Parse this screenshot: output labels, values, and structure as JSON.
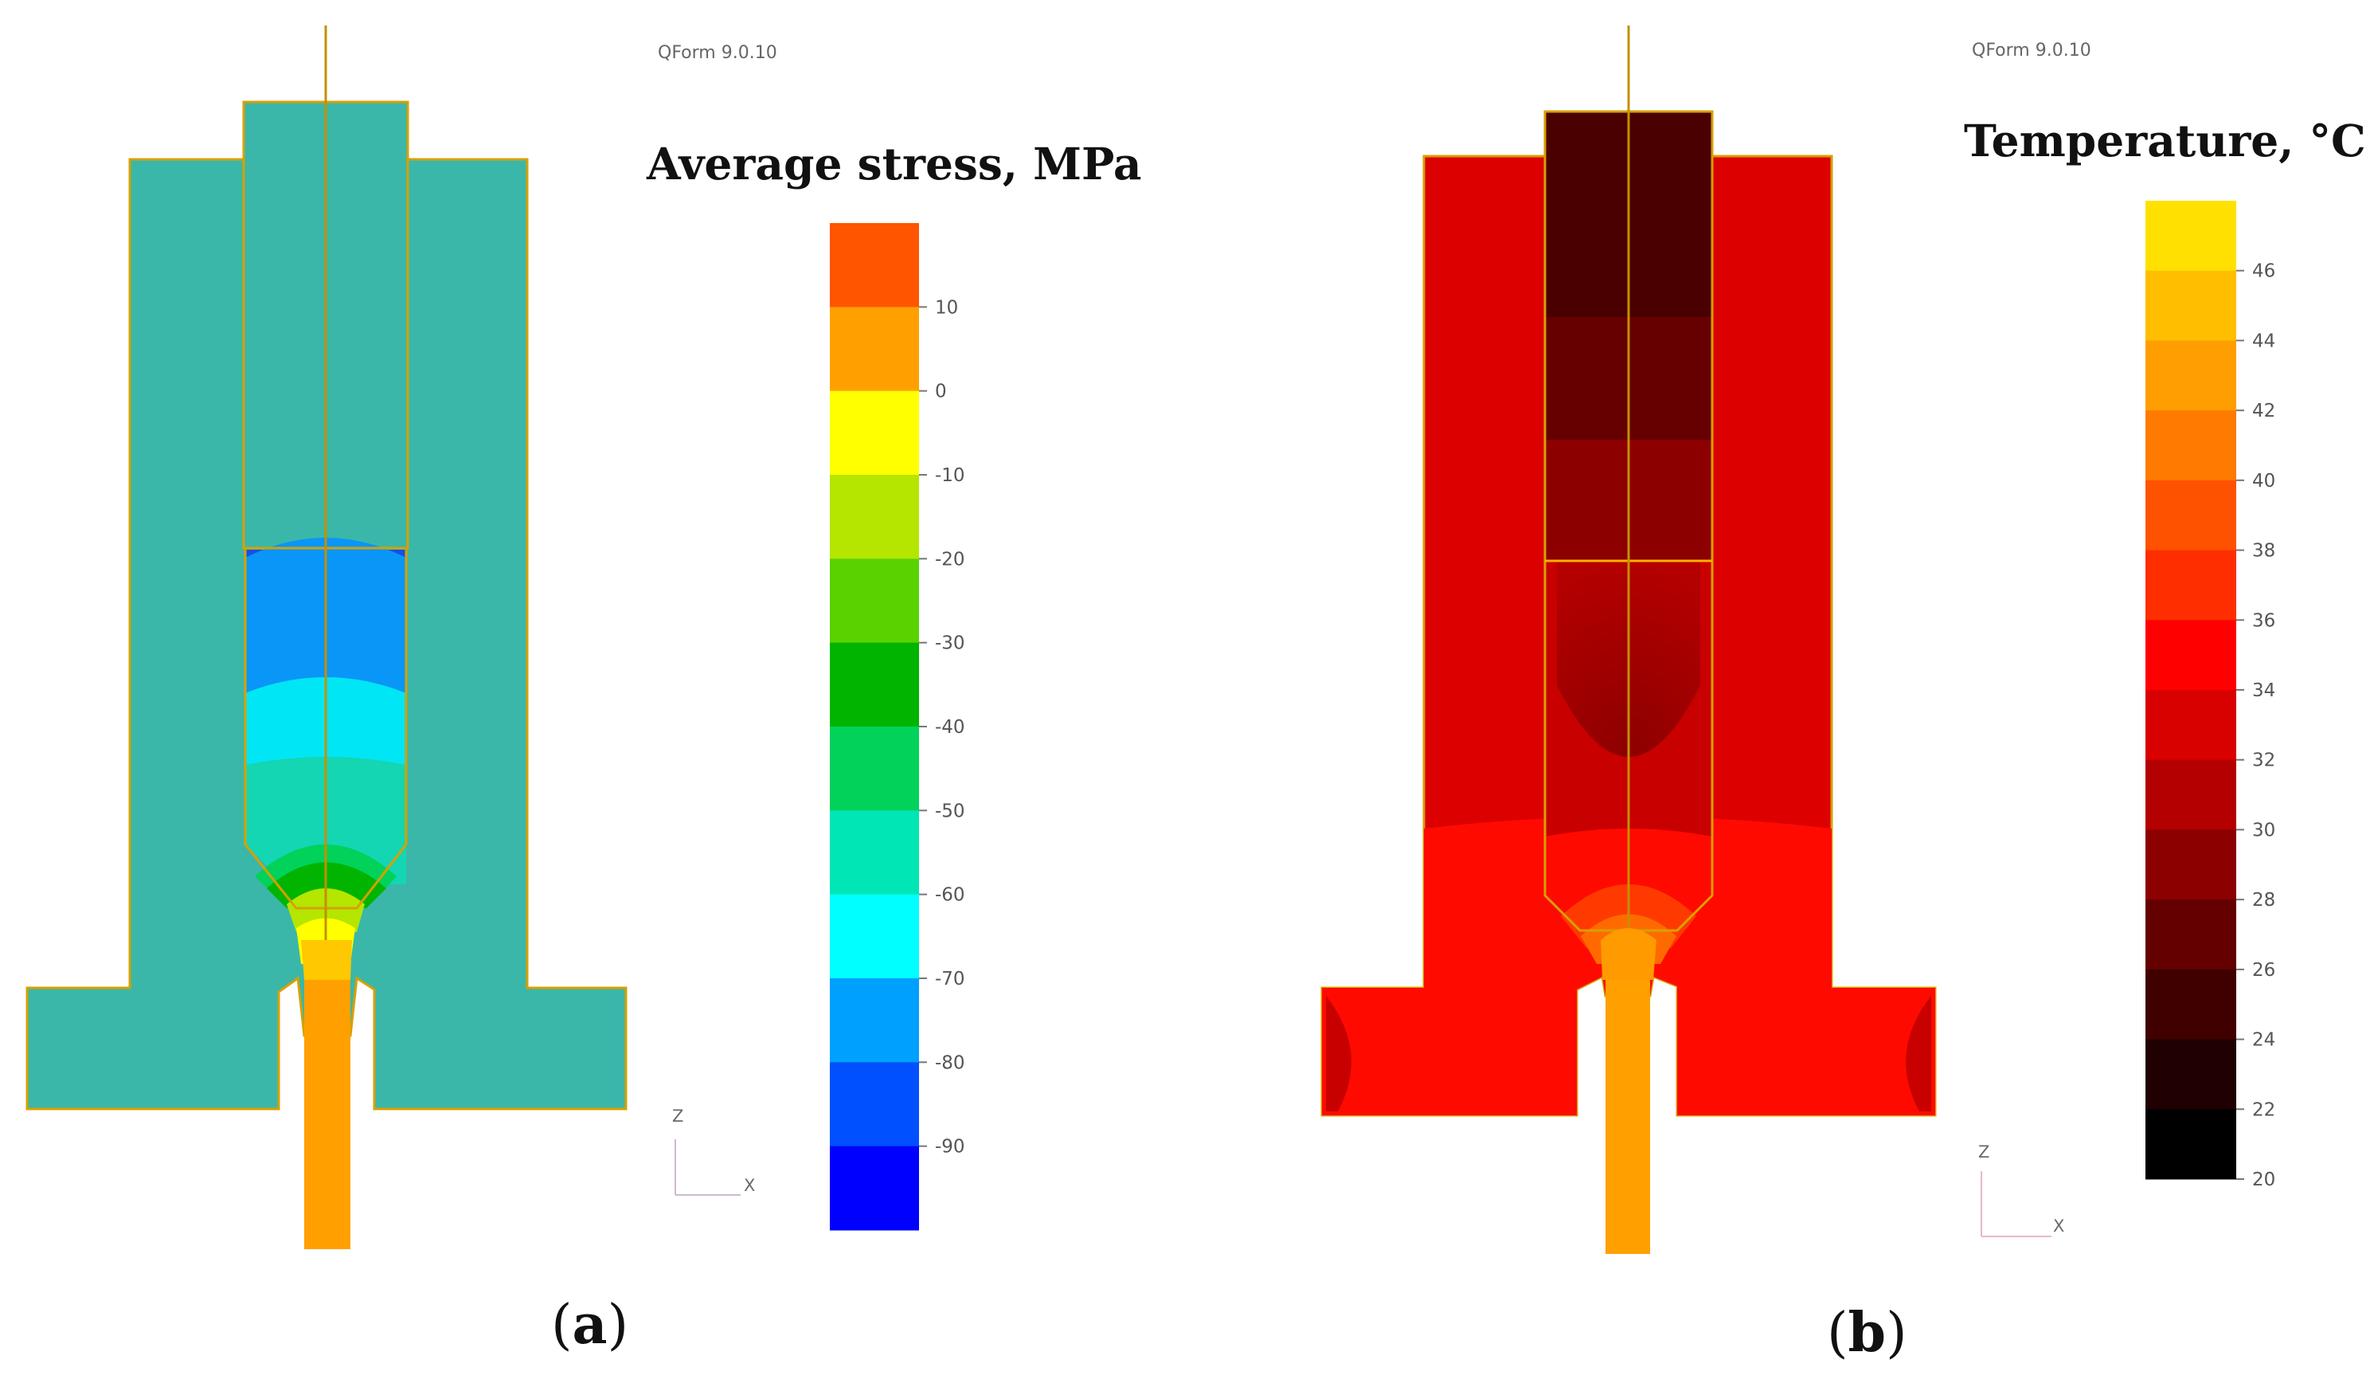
{
  "panel_a": {
    "software_label": "QForm 9.0.10",
    "legend_title": "Average stress, MPa",
    "legend_ticks": [
      "10",
      "0",
      "-10",
      "-20",
      "-30",
      "-40",
      "-50",
      "-60",
      "-70",
      "-80",
      "-90"
    ],
    "legend_colors": [
      "#ff5400",
      "#ffa000",
      "#ffff00",
      "#b4e600",
      "#5ad200",
      "#00b400",
      "#00d25a",
      "#00e6b4",
      "#00ffff",
      "#00a0ff",
      "#0050ff",
      "#0000ff"
    ],
    "axis_z": "Z",
    "axis_x": "X",
    "caption_letter": "a",
    "body_color": "#3ab7a8",
    "insert_color": "#ffa000"
  },
  "panel_b": {
    "software_label": "QForm 9.0.10",
    "legend_title": "Temperature, °C",
    "legend_ticks": [
      "46",
      "44",
      "42",
      "40",
      "38",
      "36",
      "34",
      "32",
      "30",
      "28",
      "26",
      "24",
      "22",
      "20"
    ],
    "legend_colors": [
      "#ffe000",
      "#ffbe00",
      "#ff9e00",
      "#ff7a00",
      "#ff5200",
      "#ff2e00",
      "#ff0000",
      "#d90000",
      "#b40000",
      "#8c0000",
      "#640000",
      "#400000",
      "#200000",
      "#000000"
    ],
    "axis_z": "Z",
    "axis_x": "X",
    "caption_letter": "b",
    "body_color": "#dd0000",
    "insert_color": "#ffa000"
  },
  "caption_parens": [
    "(",
    ")"
  ]
}
